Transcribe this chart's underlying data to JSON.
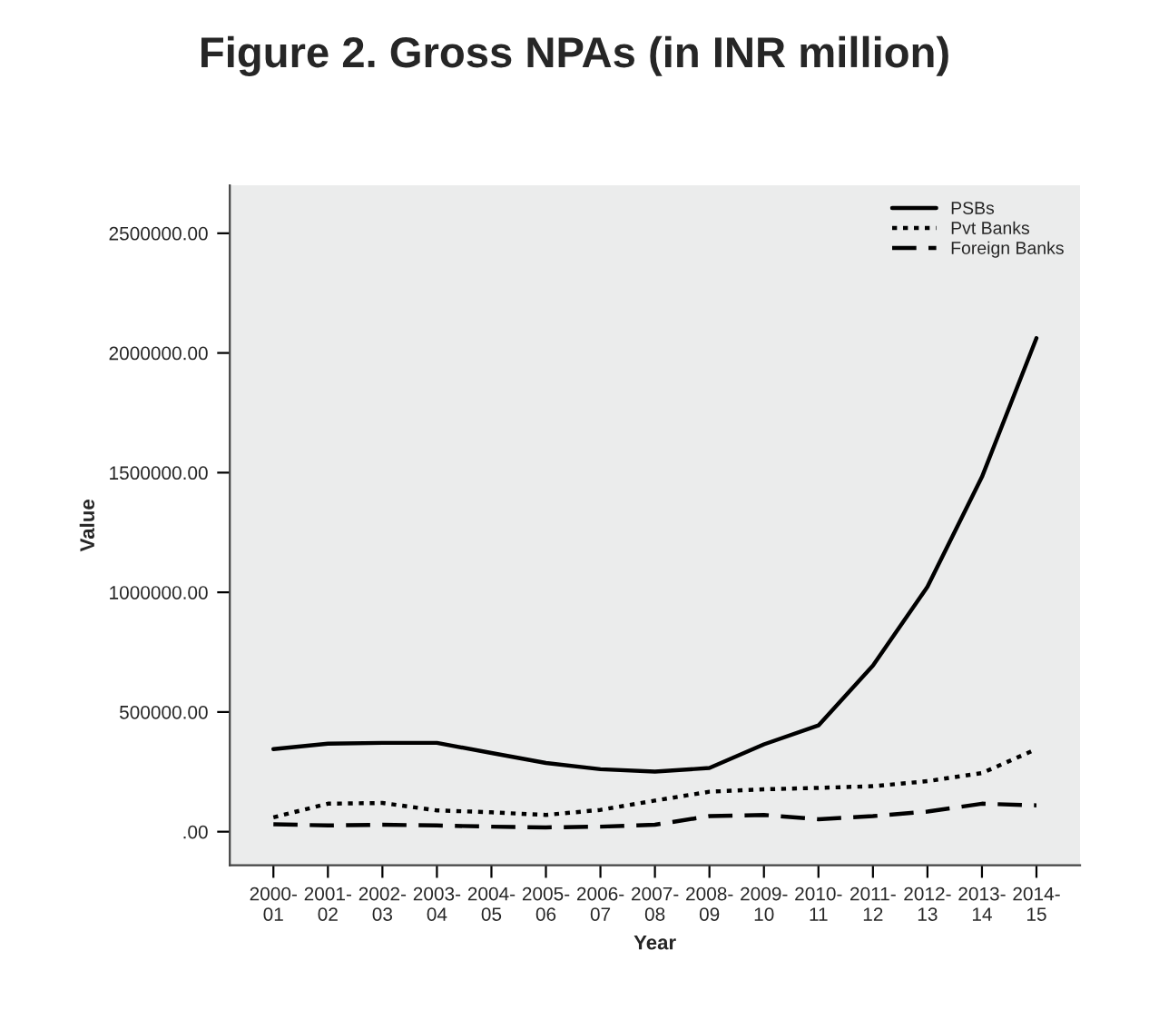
{
  "chart_data": {
    "type": "line",
    "title": "Figure 2. Gross NPAs (in INR million)",
    "xlabel": "Year",
    "ylabel": "Value",
    "categories": [
      "2000-\n01",
      "2001-\n02",
      "2002-\n03",
      "2003-\n04",
      "2004-\n05",
      "2005-\n06",
      "2006-\n07",
      "2007-\n08",
      "2008-\n09",
      "2009-\n10",
      "2010-\n11",
      "2011-\n12",
      "2012-\n13",
      "2013-\n14",
      "2014-\n15"
    ],
    "series": [
      {
        "name": "PSBs",
        "color": "#000000",
        "line_style": "solid",
        "values": [
          345000,
          368000,
          371000,
          371000,
          329000,
          287000,
          261000,
          251000,
          266000,
          365000,
          444000,
          694000,
          1023000,
          1482000,
          2062000
        ]
      },
      {
        "name": "Pvt Banks",
        "color": "#000000",
        "line_style": "dotted",
        "values": [
          60000,
          117000,
          120000,
          89000,
          81000,
          70000,
          91000,
          130000,
          167000,
          177000,
          183000,
          190000,
          211000,
          245000,
          345000
        ]
      },
      {
        "name": "Foreign Banks",
        "color": "#000000",
        "line_style": "dashed",
        "values": [
          31000,
          26000,
          29000,
          26000,
          21000,
          18000,
          21000,
          29000,
          65000,
          70000,
          52000,
          65000,
          84000,
          117000,
          110000
        ]
      }
    ],
    "ylim": [
      -140000,
      2700000
    ],
    "yticks": [
      {
        "value": 0,
        "label": ".00"
      },
      {
        "value": 500000,
        "label": "500000.00"
      },
      {
        "value": 1000000,
        "label": "1000000.00"
      },
      {
        "value": 1500000,
        "label": "1500000.00"
      },
      {
        "value": 2000000,
        "label": "2000000.00"
      },
      {
        "value": 2500000,
        "label": "2500000.00"
      }
    ],
    "grid": false,
    "legend": "top right"
  }
}
